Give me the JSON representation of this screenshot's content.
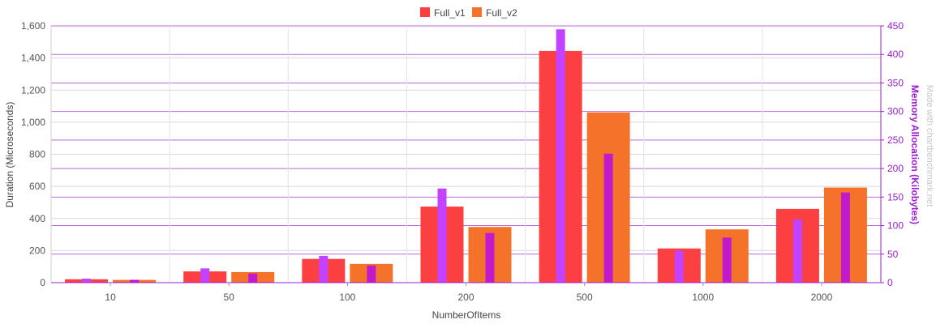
{
  "chart_data": {
    "type": "bar",
    "categories": [
      "10",
      "50",
      "100",
      "200",
      "500",
      "1000",
      "2000"
    ],
    "xlabel": "NumberOfItems",
    "ylabel": "Duration (Microseconds)",
    "y2label": "Memory Allocation (Kilobytes)",
    "ylim": [
      0,
      1600
    ],
    "y2lim": [
      0,
      450
    ],
    "yticks": [
      "0",
      "200",
      "400",
      "600",
      "800",
      "1,000",
      "1,200",
      "1,400",
      "1,600"
    ],
    "y2ticks": [
      "0",
      "50",
      "100",
      "150",
      "200",
      "250",
      "300",
      "350",
      "400",
      "450"
    ],
    "legend_position": "top-center",
    "grid": true,
    "series": [
      {
        "name": "Full_v1",
        "color": "#fc4041",
        "alloc_color": "#c342ff",
        "values": [
          21,
          70,
          148,
          474,
          1444,
          213,
          460
        ],
        "alloc": [
          7,
          25,
          47,
          165,
          444,
          56,
          111
        ]
      },
      {
        "name": "Full_v2",
        "color": "#f5722b",
        "alloc_color": "#c119cc",
        "values": [
          17,
          66,
          117,
          347,
          1061,
          332,
          593
        ],
        "alloc": [
          5,
          16,
          30,
          87,
          226,
          79,
          158
        ]
      }
    ],
    "watermark": "Made with chartbenchmark.net"
  }
}
